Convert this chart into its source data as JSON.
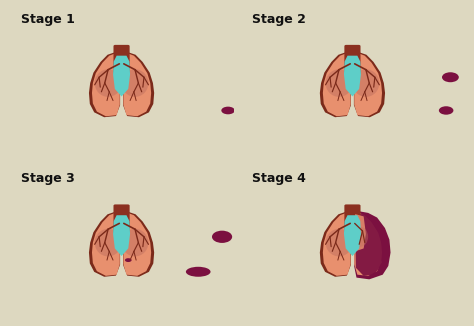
{
  "background_color": "#f0ead6",
  "panel_bg": "#f5f0e0",
  "border_color": "#999999",
  "stages": [
    "Stage 1",
    "Stage 2",
    "Stage 3",
    "Stage 4"
  ],
  "title_fontsize": 9,
  "title_fontweight": "bold",
  "lung_color": "#e8906e",
  "lung_edge_color": "#7B2A1A",
  "trachea_color": "#8B3020",
  "heart_color": "#5ecec8",
  "tumor_color": "#7B1040",
  "shadow_color": "#c07060",
  "fig_bg": "#ddd8c0",
  "outer_border": "#aaaaaa"
}
